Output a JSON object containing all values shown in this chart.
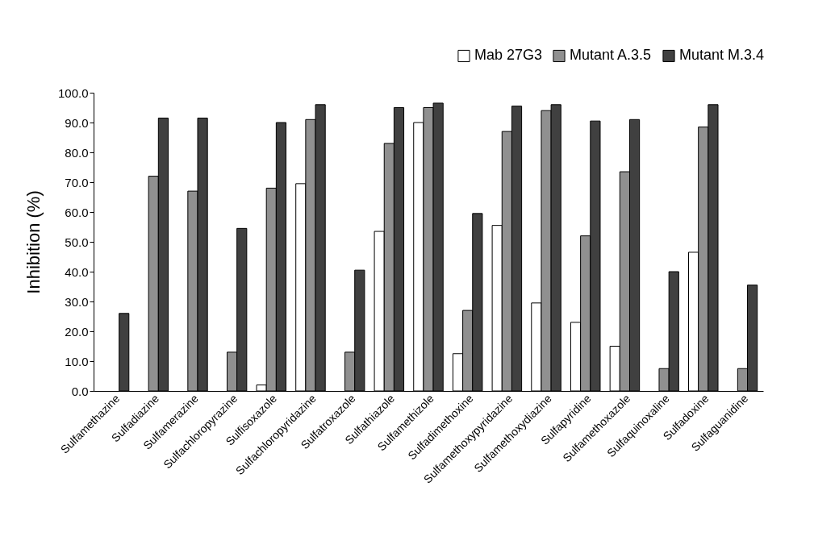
{
  "chart_data": {
    "type": "bar",
    "ylabel": "Inhibition (%)",
    "legend": "top right",
    "grid": false,
    "categories": [
      "Sulfamethazine",
      "Sulfadiazine",
      "Sulfamerazine",
      "Sulfachloropyrazine",
      "Sulfisoxazole",
      "Sulfachloropyridazine",
      "Sulfatroxazole",
      "Sulfathiazole",
      "Sulfamethizole",
      "Sulfadimethoxine",
      "Sulfamethoxypyridazine",
      "Sulfamethoxydiazine",
      "Sulfapyridine",
      "Sulfamethoxazole",
      "Sulfaquinoxaline",
      "Sulfadoxine",
      "Sulfaguanidine"
    ],
    "ylim": [
      0,
      100
    ],
    "yticks": [
      {
        "value": 0,
        "label": "0.0"
      },
      {
        "value": 10,
        "label": "10.0"
      },
      {
        "value": 20,
        "label": "20.0"
      },
      {
        "value": 30,
        "label": "30.0"
      },
      {
        "value": 40,
        "label": "40.0"
      },
      {
        "value": 50,
        "label": "50.0"
      },
      {
        "value": 60,
        "label": "60.0"
      },
      {
        "value": 70,
        "label": "70.0"
      },
      {
        "value": 80,
        "label": "80.0"
      },
      {
        "value": 90,
        "label": "90.0"
      },
      {
        "value": 100,
        "label": "100.0"
      }
    ],
    "series": [
      {
        "name": "Mab 27G3",
        "color": "#ffffff",
        "values": [
          null,
          null,
          null,
          null,
          2,
          69.5,
          null,
          53.5,
          90,
          12.5,
          55.5,
          29.5,
          23,
          15,
          null,
          46.5,
          null
        ]
      },
      {
        "name": "Mutant A.3.5",
        "color": "#909090",
        "values": [
          null,
          72,
          67,
          13,
          68,
          91,
          13,
          83,
          95,
          27,
          87,
          94,
          52,
          73.5,
          7.5,
          88.5,
          7.5
        ]
      },
      {
        "name": "Mutant M.3.4",
        "color": "#404040",
        "values": [
          26,
          91.5,
          91.5,
          54.5,
          90,
          96,
          40.5,
          95,
          96.5,
          59.5,
          95.5,
          96,
          90.5,
          91,
          40,
          96,
          35.5
        ]
      }
    ]
  }
}
